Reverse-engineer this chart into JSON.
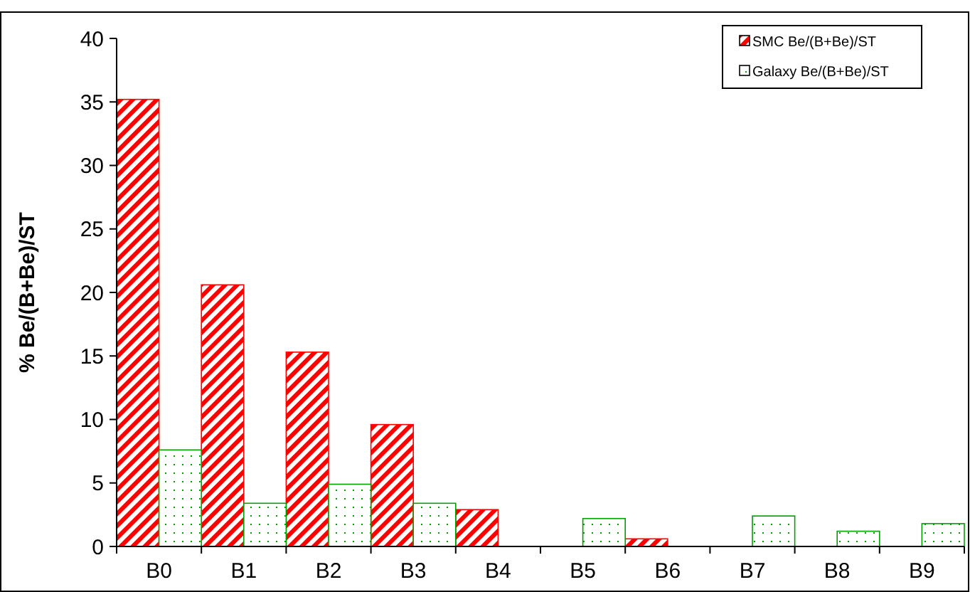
{
  "chart_data": {
    "type": "bar",
    "ylabel": "% Be/(B+Be)/ST",
    "categories": [
      "B0",
      "B1",
      "B2",
      "B3",
      "B4",
      "B5",
      "B6",
      "B7",
      "B8",
      "B9"
    ],
    "series": [
      {
        "name": "SMC Be/(B+Be)/ST",
        "color": "#ff0000",
        "values": [
          35.2,
          20.6,
          15.3,
          9.6,
          2.9,
          null,
          0.6,
          null,
          null,
          null
        ]
      },
      {
        "name": "Galaxy Be/(B+Be)/ST",
        "color": "#00a000",
        "values": [
          7.6,
          3.4,
          4.9,
          3.4,
          null,
          2.2,
          null,
          2.4,
          1.2,
          1.8
        ]
      }
    ],
    "ylim": [
      0,
      40
    ],
    "yticks": [
      0,
      5,
      10,
      15,
      20,
      25,
      30,
      35,
      40
    ],
    "grid": false,
    "legend": "top right"
  }
}
